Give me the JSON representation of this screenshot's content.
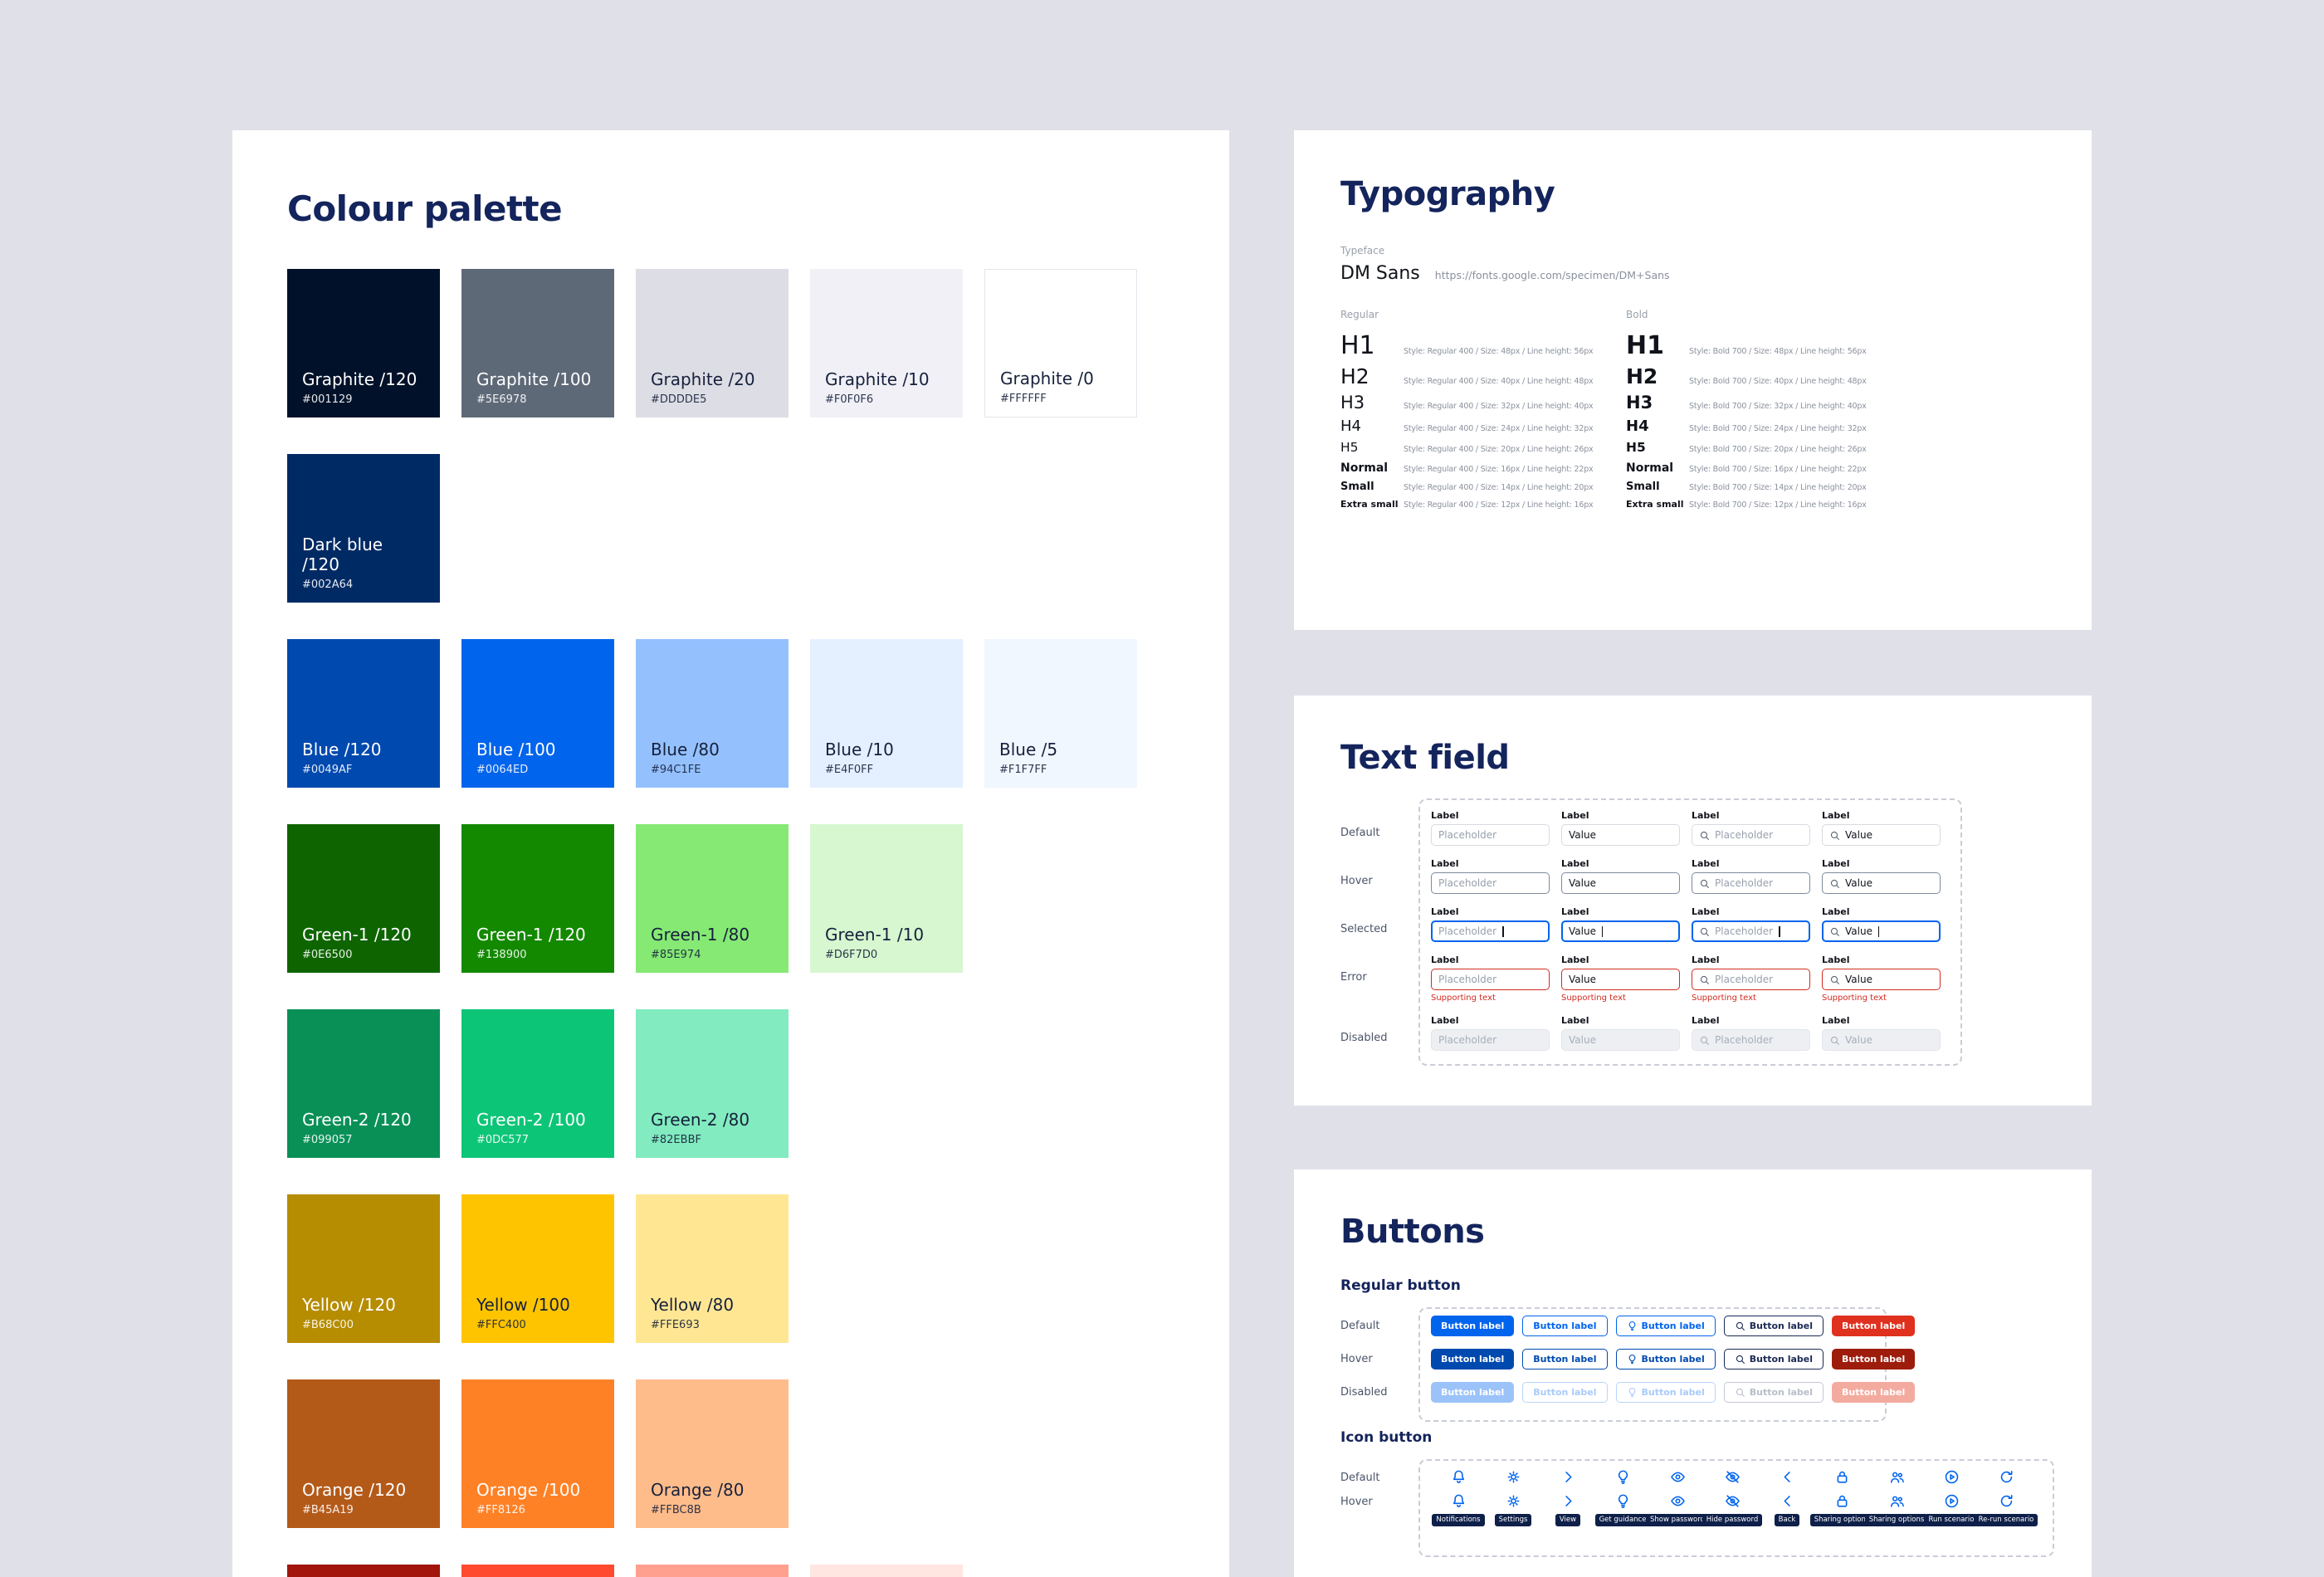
{
  "colors": {
    "background": "#E0E1E8",
    "card": "#FFFFFF",
    "heading": "#14245C",
    "primary": "#0064ED",
    "primary_dark": "#0049AF",
    "danger": "#E0301E",
    "error": "#D02B20",
    "tooltip_bg": "#0E1F49"
  },
  "palette": {
    "title": "Colour palette",
    "rows": [
      [
        {
          "name": "Graphite /120",
          "hex": "#001129",
          "text": "light"
        },
        {
          "name": "Graphite /100",
          "hex": "#5E6978",
          "text": "light"
        },
        {
          "name": "Graphite /20",
          "hex": "#DDDDE5",
          "text": "dark"
        },
        {
          "name": "Graphite /10",
          "hex": "#F0F0F6",
          "text": "dark"
        },
        {
          "name": "Graphite /0",
          "hex": "#FFFFFF",
          "text": "dark",
          "border": true
        }
      ],
      [
        {
          "name": "Dark blue /120",
          "hex": "#002A64",
          "text": "light"
        }
      ],
      [
        {
          "name": "Blue /120",
          "hex": "#0049AF",
          "text": "light"
        },
        {
          "name": "Blue /100",
          "hex": "#0064ED",
          "text": "light"
        },
        {
          "name": "Blue /80",
          "hex": "#94C1FE",
          "text": "dark"
        },
        {
          "name": "Blue /10",
          "hex": "#E4F0FF",
          "text": "dark"
        },
        {
          "name": "Blue /5",
          "hex": "#F1F7FF",
          "text": "dark"
        }
      ],
      [
        {
          "name": "Green-1 /120",
          "hex": "#0E6500",
          "text": "light"
        },
        {
          "name": "Green-1 /120",
          "hex": "#138900",
          "text": "light"
        },
        {
          "name": "Green-1 /80",
          "hex": "#85E974",
          "text": "dark"
        },
        {
          "name": "Green-1 /10",
          "hex": "#D6F7D0",
          "text": "dark"
        }
      ],
      [
        {
          "name": "Green-2 /120",
          "hex": "#099057",
          "text": "light"
        },
        {
          "name": "Green-2 /100",
          "hex": "#0DC577",
          "text": "light"
        },
        {
          "name": "Green-2 /80",
          "hex": "#82EBBF",
          "text": "dark"
        }
      ],
      [
        {
          "name": "Yellow /120",
          "hex": "#B68C00",
          "text": "light"
        },
        {
          "name": "Yellow /100",
          "hex": "#FFC400",
          "text": "dark"
        },
        {
          "name": "Yellow /80",
          "hex": "#FFE693",
          "text": "dark"
        }
      ],
      [
        {
          "name": "Orange /120",
          "hex": "#B45A19",
          "text": "light"
        },
        {
          "name": "Orange /100",
          "hex": "#FF8126",
          "text": "light"
        },
        {
          "name": "Orange /80",
          "hex": "#FFBC8B",
          "text": "dark"
        }
      ],
      [
        {
          "name": "",
          "hex": "#A1150A",
          "text": "light",
          "partial": true
        },
        {
          "name": "",
          "hex": "#FF4A30",
          "text": "light",
          "partial": true
        },
        {
          "name": "",
          "hex": "#FFA08F",
          "text": "dark",
          "partial": true
        },
        {
          "name": "",
          "hex": "#FFE6E1",
          "text": "dark",
          "partial": true
        }
      ]
    ]
  },
  "typography": {
    "title": "Typography",
    "typeface_label": "Typeface",
    "typeface": "DM Sans",
    "link": "https://fonts.google.com/specimen/DM+Sans",
    "columns": [
      {
        "header": "Regular"
      },
      {
        "header": "Bold"
      }
    ],
    "rows": [
      {
        "label": "H1",
        "regular_spec": "Style: Regular 400 / Size: 48px / Line height: 56px",
        "bold_spec": "Style: Bold 700 / Size: 48px / Line height: 56px"
      },
      {
        "label": "H2",
        "regular_spec": "Style: Regular 400 / Size: 40px / Line height: 48px",
        "bold_spec": "Style: Bold 700 / Size: 40px / Line height: 48px"
      },
      {
        "label": "H3",
        "regular_spec": "Style: Regular 400 / Size: 32px / Line height: 40px",
        "bold_spec": "Style: Bold 700 / Size: 32px / Line height: 40px"
      },
      {
        "label": "H4",
        "regular_spec": "Style: Regular 400 / Size: 24px / Line height: 32px",
        "bold_spec": "Style: Bold 700 / Size: 24px / Line height: 32px"
      },
      {
        "label": "H5",
        "regular_spec": "Style: Regular 400 / Size: 20px / Line height: 26px",
        "bold_spec": "Style: Bold 700 / Size: 20px / Line height: 26px"
      },
      {
        "label": "Normal",
        "regular_spec": "Style: Regular 400 / Size: 16px / Line height: 22px",
        "bold_spec": "Style: Bold 700 / Size: 16px / Line height: 22px"
      },
      {
        "label": "Small",
        "regular_spec": "Style: Regular 400 / Size: 14px / Line height: 20px",
        "bold_spec": "Style: Bold 700 / Size: 14px / Line height: 20px"
      },
      {
        "label": "Extra small",
        "regular_spec": "Style: Regular 400 / Size: 12px / Line height: 16px",
        "bold_spec": "Style: Bold 700 / Size: 12px / Line height: 16px"
      }
    ]
  },
  "textfield": {
    "title": "Text field",
    "states": [
      {
        "label": "Default",
        "key": "default"
      },
      {
        "label": "Hover",
        "key": "hover"
      },
      {
        "label": "Selected",
        "key": "selected"
      },
      {
        "label": "Error",
        "key": "error"
      },
      {
        "label": "Disabled",
        "key": "disabled"
      }
    ],
    "field_label": "Label",
    "fields": [
      {
        "label": "Label",
        "text": "Placeholder",
        "kind": "placeholder",
        "icon": false
      },
      {
        "label": "Label",
        "text": "Value",
        "kind": "value",
        "icon": false
      },
      {
        "label": "Label",
        "text": "Placeholder",
        "kind": "placeholder",
        "icon": true
      },
      {
        "label": "Label",
        "text": "Value",
        "kind": "value",
        "icon": true
      }
    ],
    "supporting_text": "Supporting text"
  },
  "buttons": {
    "title": "Buttons",
    "regular": {
      "heading": "Regular button",
      "label": "Button label",
      "states": [
        {
          "label": "Default",
          "key": "default"
        },
        {
          "label": "Hover",
          "key": "hover"
        },
        {
          "label": "Disabled",
          "key": "disabled"
        }
      ],
      "variants": [
        {
          "name": "primary",
          "icon": null
        },
        {
          "name": "outline",
          "icon": null
        },
        {
          "name": "lightbulb",
          "icon": "lightbulb"
        },
        {
          "name": "search",
          "icon": "search"
        },
        {
          "name": "danger",
          "icon": null
        }
      ]
    },
    "icon": {
      "heading": "Icon button",
      "states": [
        {
          "label": "Default",
          "key": "default"
        },
        {
          "label": "Hover",
          "key": "hover"
        }
      ],
      "items": [
        {
          "icon": "bell",
          "tooltip": "Notifications"
        },
        {
          "icon": "gear",
          "tooltip": "Settings"
        },
        {
          "icon": "chevron-right",
          "tooltip": "View"
        },
        {
          "icon": "lightbulb",
          "tooltip": "Get guidance"
        },
        {
          "icon": "eye",
          "tooltip": "Show password"
        },
        {
          "icon": "eye-off",
          "tooltip": "Hide password"
        },
        {
          "icon": "chevron-left",
          "tooltip": "Back"
        },
        {
          "icon": "lock",
          "tooltip": "Sharing options"
        },
        {
          "icon": "users",
          "tooltip": "Sharing options"
        },
        {
          "icon": "play-circle",
          "tooltip": "Run scenario"
        },
        {
          "icon": "refresh",
          "tooltip": "Re-run scenario"
        }
      ]
    }
  }
}
